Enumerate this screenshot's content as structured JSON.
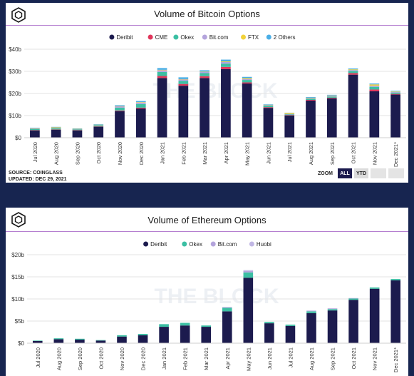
{
  "panels": [
    {
      "title": "Volume of Bitcoin Options",
      "source_line1": "SOURCE: COINGLASS",
      "source_line2": "UPDATED: DEC 29, 2021",
      "zoom": {
        "label": "ZOOM",
        "buttons": [
          "ALL",
          "YTD"
        ],
        "active": "ALL"
      }
    },
    {
      "title": "Volume of Ethereum Options"
    }
  ],
  "watermark": "THE BLOCK",
  "colors": {
    "Deribit": "#1c1b4e",
    "CME": "#e0365b",
    "Okex": "#3bbfa3",
    "Bit.com": "#b4a4dc",
    "FTX": "#f2d23a",
    "2 Others": "#4aaee6",
    "Huobi": "#c0b6e4"
  },
  "chart_data": [
    {
      "type": "bar",
      "stacked": true,
      "title": "Volume of Bitcoin Options",
      "categories": [
        "Jul 2020",
        "Aug 2020",
        "Sep 2020",
        "Oct 2020",
        "Nov 2020",
        "Dec 2020",
        "Jan 2021",
        "Feb 2021",
        "Mar 2021",
        "Apr 2021",
        "May 2021",
        "Jun 2021",
        "Jul 2021",
        "Aug 2021",
        "Sep 2021",
        "Oct 2021",
        "Nov 2021",
        "Dec 2021*"
      ],
      "y_ticks": [
        "$0",
        "$10b",
        "$20b",
        "$30b",
        "$40b"
      ],
      "ylim": [
        0,
        40
      ],
      "unit": "$b",
      "legend_position": "top-center",
      "series": [
        {
          "name": "Deribit",
          "values": [
            3.3,
            3.6,
            3.3,
            5.0,
            12.0,
            13.2,
            27.0,
            23.5,
            27.0,
            31.0,
            24.5,
            13.5,
            10.0,
            16.8,
            17.8,
            28.5,
            21.0,
            19.5
          ]
        },
        {
          "name": "CME",
          "values": [
            0.1,
            0.1,
            0.1,
            0.1,
            0.3,
            0.4,
            0.9,
            0.8,
            0.8,
            1.0,
            0.5,
            0.3,
            0.2,
            0.3,
            0.3,
            0.7,
            0.8,
            0.3
          ]
        },
        {
          "name": "Okex",
          "values": [
            0.5,
            0.5,
            0.4,
            0.5,
            1.3,
            1.6,
            1.8,
            1.4,
            1.4,
            1.5,
            1.1,
            0.7,
            0.3,
            0.5,
            0.5,
            1.0,
            1.2,
            0.6
          ]
        },
        {
          "name": "Bit.com",
          "values": [
            0.2,
            0.2,
            0.1,
            0.2,
            0.6,
            0.7,
            0.8,
            0.7,
            0.6,
            0.7,
            0.4,
            0.3,
            0.2,
            0.3,
            0.3,
            0.4,
            0.5,
            0.3
          ]
        },
        {
          "name": "FTX",
          "values": [
            0.1,
            0.3,
            0.1,
            0.1,
            0.1,
            0.2,
            0.2,
            0.1,
            0.1,
            0.3,
            0.4,
            0.1,
            0.5,
            0.2,
            0.2,
            0.3,
            0.6,
            0.2
          ]
        },
        {
          "name": "2 Others",
          "values": [
            0.3,
            0.2,
            0.2,
            0.2,
            0.4,
            0.5,
            0.8,
            0.8,
            0.6,
            0.8,
            0.6,
            0.2,
            0.1,
            0.3,
            0.3,
            0.4,
            0.4,
            0.3
          ]
        }
      ]
    },
    {
      "type": "bar",
      "stacked": true,
      "title": "Volume of Ethereum Options",
      "categories": [
        "Jul 2020",
        "Aug 2020",
        "Sep 2020",
        "Oct 2020",
        "Nov 2020",
        "Dec 2020",
        "Jan 2021",
        "Feb 2021",
        "Mar 2021",
        "Apr 2021",
        "May 2021",
        "Jun 2021",
        "Jul 2021",
        "Aug 2021",
        "Sep 2021",
        "Oct 2021",
        "Nov 2021",
        "Dec 2021*"
      ],
      "y_ticks": [
        "$0",
        "$5b",
        "$10b",
        "$15b",
        "$20b"
      ],
      "ylim": [
        0,
        20
      ],
      "unit": "$b",
      "legend_position": "top-center",
      "series": [
        {
          "name": "Deribit",
          "values": [
            0.5,
            0.9,
            0.8,
            0.6,
            1.5,
            1.8,
            3.7,
            4.0,
            3.7,
            7.2,
            14.8,
            4.5,
            3.9,
            6.8,
            7.4,
            9.8,
            12.3,
            14.2
          ]
        },
        {
          "name": "Okex",
          "values": [
            0.1,
            0.2,
            0.2,
            0.1,
            0.3,
            0.3,
            0.6,
            0.6,
            0.3,
            0.8,
            1.2,
            0.3,
            0.3,
            0.4,
            0.3,
            0.3,
            0.3,
            0.3
          ]
        },
        {
          "name": "Bit.com",
          "values": [
            0.0,
            0.0,
            0.0,
            0.0,
            0.0,
            0.0,
            0.0,
            0.0,
            0.0,
            0.1,
            0.3,
            0.0,
            0.0,
            0.1,
            0.1,
            0.1,
            0.0,
            0.0
          ]
        },
        {
          "name": "Huobi",
          "values": [
            0.0,
            0.0,
            0.0,
            0.0,
            0.0,
            0.0,
            0.0,
            0.0,
            0.0,
            0.1,
            0.2,
            0.0,
            0.0,
            0.1,
            0.1,
            0.0,
            0.0,
            0.0
          ]
        }
      ]
    }
  ]
}
